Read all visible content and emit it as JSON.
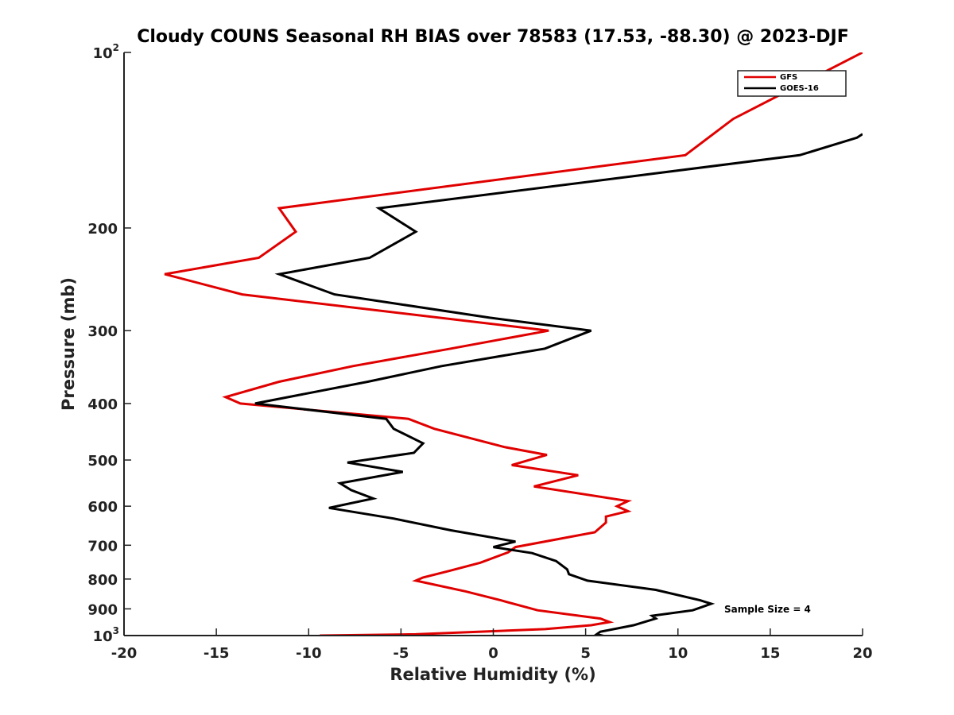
{
  "chart_data": {
    "type": "line",
    "title": "Cloudy COUNS Seasonal RH BIAS over 78583 (17.53, -88.30) @ 2023-DJF",
    "xlabel": "Relative Humidity (%)",
    "ylabel": "Pressure (mb)",
    "xlim": [
      -20,
      20
    ],
    "ylim": [
      100,
      1000
    ],
    "y_scale": "log",
    "y_reversed": true,
    "x_ticks": [
      "-20",
      "-15",
      "-10",
      "-5",
      "0",
      "5",
      "10",
      "15",
      "20"
    ],
    "y_ticks": [
      {
        "value": 100,
        "base": "10",
        "exp": "2"
      },
      {
        "value": 200,
        "base": "200",
        "exp": ""
      },
      {
        "value": 300,
        "base": "300",
        "exp": ""
      },
      {
        "value": 400,
        "base": "400",
        "exp": ""
      },
      {
        "value": 500,
        "base": "500",
        "exp": ""
      },
      {
        "value": 600,
        "base": "600",
        "exp": ""
      },
      {
        "value": 700,
        "base": "700",
        "exp": ""
      },
      {
        "value": 800,
        "base": "800",
        "exp": ""
      },
      {
        "value": 900,
        "base": "900",
        "exp": ""
      },
      {
        "value": 1000,
        "base": "10",
        "exp": "3"
      }
    ],
    "legend_position": "top-right",
    "annotation": "Sample Size = 4",
    "series": [
      {
        "name": "GFS",
        "color": "#e00000",
        "points": [
          [
            20.0,
            100
          ],
          [
            13.0,
            130
          ],
          [
            10.4,
            150
          ],
          [
            -11.6,
            185
          ],
          [
            -10.7,
            203
          ],
          [
            -12.7,
            225
          ],
          [
            -17.8,
            240
          ],
          [
            -13.6,
            260
          ],
          [
            3.0,
            300
          ],
          [
            -2.3,
            322
          ],
          [
            -7.6,
            345
          ],
          [
            -11.6,
            367
          ],
          [
            -14.5,
            390
          ],
          [
            -13.7,
            400
          ],
          [
            -4.6,
            425
          ],
          [
            -3.2,
            442
          ],
          [
            0.6,
            475
          ],
          [
            2.9,
            490
          ],
          [
            1.0,
            510
          ],
          [
            4.6,
            531
          ],
          [
            2.2,
            555
          ],
          [
            7.3,
            588
          ],
          [
            6.7,
            600
          ],
          [
            7.3,
            612
          ],
          [
            6.1,
            625
          ],
          [
            6.1,
            640
          ],
          [
            5.5,
            665
          ],
          [
            1.2,
            705
          ],
          [
            0.8,
            720
          ],
          [
            -0.7,
            750
          ],
          [
            -2.4,
            775
          ],
          [
            -3.8,
            795
          ],
          [
            -4.2,
            805
          ],
          [
            -1.5,
            840
          ],
          [
            0.4,
            870
          ],
          [
            2.4,
            905
          ],
          [
            5.8,
            935
          ],
          [
            6.3,
            948
          ],
          [
            5.3,
            960
          ],
          [
            2.8,
            975
          ],
          [
            -4.2,
            995
          ],
          [
            -9.4,
            1000
          ]
        ]
      },
      {
        "name": "GOES-16",
        "color": "#000000",
        "points": [
          [
            20.0,
            138
          ],
          [
            19.7,
            140
          ],
          [
            16.6,
            150
          ],
          [
            -6.2,
            185
          ],
          [
            -4.2,
            203
          ],
          [
            -6.7,
            225
          ],
          [
            -11.6,
            240
          ],
          [
            -8.6,
            260
          ],
          [
            -0.2,
            285
          ],
          [
            5.3,
            300
          ],
          [
            2.8,
            322
          ],
          [
            -2.8,
            345
          ],
          [
            -6.8,
            367
          ],
          [
            -12.9,
            400
          ],
          [
            -5.8,
            425
          ],
          [
            -5.4,
            442
          ],
          [
            -3.8,
            468
          ],
          [
            -4.3,
            486
          ],
          [
            -7.9,
            505
          ],
          [
            -4.9,
            524
          ],
          [
            -8.3,
            548
          ],
          [
            -7.7,
            563
          ],
          [
            -6.5,
            582
          ],
          [
            -8.9,
            604
          ],
          [
            -5.4,
            630
          ],
          [
            -2.3,
            660
          ],
          [
            1.2,
            690
          ],
          [
            0.0,
            705
          ],
          [
            2.1,
            722
          ],
          [
            3.4,
            745
          ],
          [
            4.0,
            770
          ],
          [
            4.1,
            785
          ],
          [
            5.1,
            805
          ],
          [
            8.8,
            835
          ],
          [
            11.2,
            870
          ],
          [
            11.8,
            882
          ],
          [
            10.8,
            905
          ],
          [
            8.6,
            925
          ],
          [
            8.8,
            935
          ],
          [
            7.6,
            960
          ],
          [
            5.8,
            985
          ],
          [
            5.6,
            995
          ],
          [
            6.2,
            1005
          ]
        ]
      }
    ]
  }
}
